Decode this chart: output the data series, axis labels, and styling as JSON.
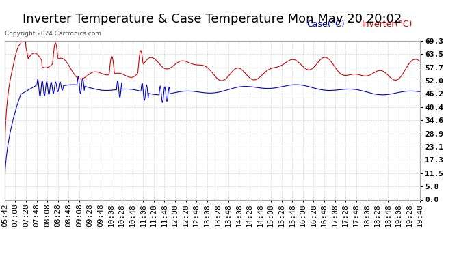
{
  "title": "Inverter Temperature & Case Temperature Mon May 20 20:02",
  "copyright": "Copyright 2024 Cartronics.com",
  "legend_case": "Case(°C)",
  "legend_inverter": "Inverter(°C)",
  "yticks": [
    0.0,
    5.8,
    11.5,
    17.3,
    23.1,
    28.9,
    34.6,
    40.4,
    46.2,
    52.0,
    57.7,
    63.5,
    69.3
  ],
  "ymin": 0.0,
  "ymax": 69.3,
  "background_color": "#ffffff",
  "plot_bg_color": "#ffffff",
  "grid_color": "#cccccc",
  "case_color": "#0000cc",
  "inverter_color": "#cc0000",
  "title_fontsize": 13,
  "tick_fontsize": 8,
  "xtick_labels": [
    "05:42",
    "07:08",
    "07:28",
    "07:48",
    "08:08",
    "08:28",
    "08:48",
    "09:08",
    "09:28",
    "09:48",
    "10:08",
    "10:28",
    "10:48",
    "11:08",
    "11:28",
    "11:48",
    "12:08",
    "12:28",
    "12:48",
    "13:08",
    "13:28",
    "13:48",
    "14:08",
    "14:28",
    "14:48",
    "15:08",
    "15:28",
    "15:48",
    "16:08",
    "16:28",
    "16:48",
    "17:08",
    "17:28",
    "17:48",
    "18:08",
    "18:28",
    "18:48",
    "19:08",
    "19:28",
    "19:48"
  ]
}
